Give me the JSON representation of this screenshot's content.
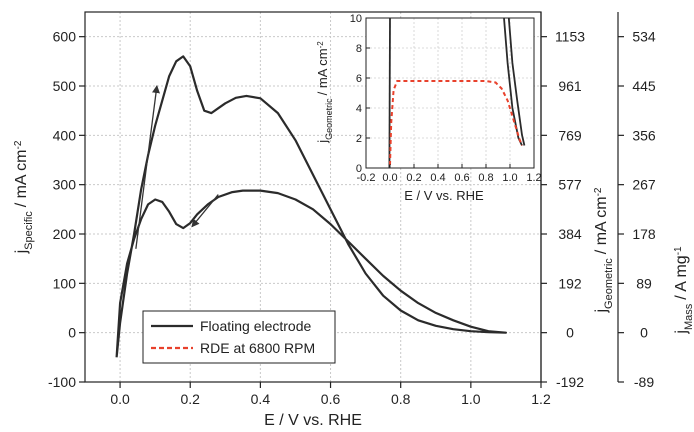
{
  "chart_data": {
    "type": "line",
    "xlabel": "E / V vs. RHE",
    "ylabel_main": "j",
    "ylabel_main_sub": "Specific",
    "ylabel_main_unit": "/ mA cm",
    "ylabel_main_exp": "-2",
    "ylabel_right1": "j",
    "ylabel_right1_sub": "Geometric",
    "ylabel_right1_unit": "/ mA cm",
    "ylabel_right1_exp": "-2",
    "ylabel_right2": "j",
    "ylabel_right2_sub": "Mass",
    "ylabel_right2_unit": "/ A mg",
    "ylabel_right2_exp": "-1",
    "xlim": [
      -0.1,
      1.2
    ],
    "ylim": [
      -100,
      650
    ],
    "x_ticks": [
      "0.0",
      "0.2",
      "0.4",
      "0.6",
      "0.8",
      "1.0",
      "1.2"
    ],
    "x_tick_values": [
      0.0,
      0.2,
      0.4,
      0.6,
      0.8,
      1.0,
      1.2
    ],
    "y_ticks": [
      "-100",
      "0",
      "100",
      "200",
      "300",
      "400",
      "500",
      "600"
    ],
    "y_tick_values": [
      -100,
      0,
      100,
      200,
      300,
      400,
      500,
      600
    ],
    "right1_ticks": [
      "-192",
      "0",
      "192",
      "384",
      "577",
      "769",
      "961",
      "1153"
    ],
    "right2_ticks": [
      "-89",
      "0",
      "89",
      "178",
      "267",
      "356",
      "445",
      "534"
    ],
    "grid": true,
    "legend_position": "bottom-left",
    "colors": {
      "floating": "#2b2b2b",
      "rde": "#e8412c"
    },
    "series": [
      {
        "name": "Floating electrode",
        "style": "solid",
        "anodic": [
          [
            -0.01,
            -50
          ],
          [
            0.0,
            20
          ],
          [
            0.02,
            120
          ],
          [
            0.04,
            200
          ],
          [
            0.06,
            290
          ],
          [
            0.08,
            360
          ],
          [
            0.1,
            420
          ],
          [
            0.12,
            470
          ],
          [
            0.14,
            520
          ],
          [
            0.16,
            550
          ],
          [
            0.18,
            560
          ],
          [
            0.2,
            540
          ],
          [
            0.22,
            490
          ],
          [
            0.24,
            450
          ],
          [
            0.26,
            445
          ],
          [
            0.28,
            455
          ],
          [
            0.3,
            465
          ],
          [
            0.33,
            476
          ],
          [
            0.36,
            480
          ],
          [
            0.4,
            475
          ],
          [
            0.45,
            445
          ],
          [
            0.5,
            390
          ],
          [
            0.55,
            320
          ],
          [
            0.6,
            250
          ],
          [
            0.65,
            180
          ],
          [
            0.7,
            120
          ],
          [
            0.75,
            75
          ],
          [
            0.8,
            45
          ],
          [
            0.85,
            25
          ],
          [
            0.9,
            14
          ],
          [
            0.95,
            7
          ],
          [
            1.0,
            3
          ],
          [
            1.05,
            1
          ],
          [
            1.1,
            0
          ]
        ],
        "cathodic": [
          [
            1.1,
            0
          ],
          [
            1.05,
            3
          ],
          [
            1.0,
            12
          ],
          [
            0.95,
            25
          ],
          [
            0.9,
            40
          ],
          [
            0.85,
            60
          ],
          [
            0.8,
            85
          ],
          [
            0.75,
            115
          ],
          [
            0.7,
            150
          ],
          [
            0.65,
            185
          ],
          [
            0.6,
            220
          ],
          [
            0.55,
            250
          ],
          [
            0.5,
            270
          ],
          [
            0.45,
            283
          ],
          [
            0.4,
            288
          ],
          [
            0.35,
            288
          ],
          [
            0.32,
            285
          ],
          [
            0.28,
            275
          ],
          [
            0.25,
            260
          ],
          [
            0.22,
            240
          ],
          [
            0.2,
            222
          ],
          [
            0.18,
            212
          ],
          [
            0.16,
            220
          ],
          [
            0.14,
            245
          ],
          [
            0.12,
            265
          ],
          [
            0.1,
            270
          ],
          [
            0.08,
            260
          ],
          [
            0.06,
            230
          ],
          [
            0.04,
            190
          ],
          [
            0.02,
            140
          ],
          [
            0.0,
            60
          ],
          [
            -0.01,
            -50
          ]
        ]
      }
    ],
    "legend": [
      {
        "label": "Floating electrode",
        "style": "solid"
      },
      {
        "label": "RDE at 6800 RPM",
        "style": "dashed"
      }
    ],
    "arrows": [
      {
        "from": [
          0.045,
          170
        ],
        "to": [
          0.105,
          500
        ]
      },
      {
        "from": [
          0.28,
          280
        ],
        "to": [
          0.205,
          215
        ]
      }
    ],
    "inset": {
      "xlabel": "E / V vs. RHE",
      "ylabel": "j",
      "ylabel_sub": "Geometric",
      "ylabel_unit": "/ mA cm",
      "ylabel_exp": "-2",
      "xlim": [
        -0.2,
        1.2
      ],
      "ylim": [
        0,
        10
      ],
      "x_ticks": [
        "-0.2",
        "0.0",
        "0.2",
        "0.4",
        "0.6",
        "0.8",
        "1.0",
        "1.2"
      ],
      "x_tick_values": [
        -0.2,
        0.0,
        0.2,
        0.4,
        0.6,
        0.8,
        1.0,
        1.2
      ],
      "y_ticks": [
        "0",
        "2",
        "4",
        "6",
        "8",
        "10"
      ],
      "y_tick_values": [
        0,
        2,
        4,
        6,
        8,
        10
      ],
      "floating_lines": [
        [
          [
            -0.005,
            0
          ],
          [
            0.0,
            10
          ]
        ],
        [
          [
            0.95,
            10
          ],
          [
            0.98,
            7
          ],
          [
            1.02,
            4
          ],
          [
            1.07,
            2
          ],
          [
            1.1,
            1.5
          ]
        ],
        [
          [
            0.99,
            10
          ],
          [
            1.02,
            7
          ],
          [
            1.06,
            4.5
          ],
          [
            1.1,
            2.2
          ],
          [
            1.12,
            1.5
          ]
        ]
      ],
      "rde_line": [
        [
          0.0,
          0.2
        ],
        [
          0.01,
          3
        ],
        [
          0.03,
          5.2
        ],
        [
          0.06,
          5.8
        ],
        [
          0.2,
          5.8
        ],
        [
          0.8,
          5.8
        ],
        [
          0.88,
          5.7
        ],
        [
          0.93,
          5.3
        ],
        [
          0.98,
          4.5
        ],
        [
          1.03,
          3.2
        ],
        [
          1.08,
          1.9
        ],
        [
          1.1,
          1.5
        ]
      ]
    }
  }
}
